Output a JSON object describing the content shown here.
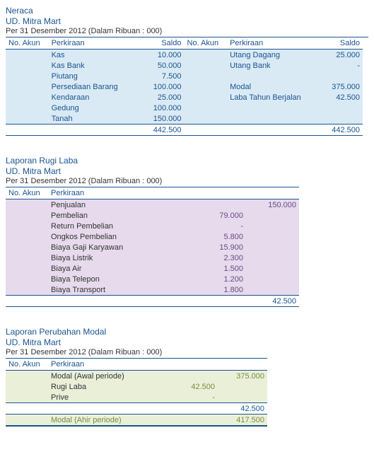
{
  "company": "UD. Mitra Mart",
  "period": "Per 31 Desember 2012 (Dalam Ribuan : 000)",
  "headers": {
    "no_akun": "No. Akun",
    "perkiraan": "Perkiraan",
    "saldo": "Saldo"
  },
  "neraca": {
    "title": "Neraca",
    "left": [
      {
        "name": "Kas",
        "saldo": "10.000"
      },
      {
        "name": "Kas Bank",
        "saldo": "50.000"
      },
      {
        "name": "Piutang",
        "saldo": "7.500"
      },
      {
        "name": "Persediaan Barang",
        "saldo": "100.000"
      },
      {
        "name": "Kendaraan",
        "saldo": "25.000"
      },
      {
        "name": "Gedung",
        "saldo": "100.000"
      },
      {
        "name": "Tanah",
        "saldo": "150.000"
      }
    ],
    "right": [
      {
        "name": "Utang Dagang",
        "saldo": "25.000"
      },
      {
        "name": "Utang Bank",
        "saldo": "-"
      },
      {
        "name": "",
        "saldo": ""
      },
      {
        "name": "Modal",
        "saldo": "375.000"
      },
      {
        "name": "Laba Tahun Berjalan",
        "saldo": "42.500"
      },
      {
        "name": "",
        "saldo": ""
      },
      {
        "name": "",
        "saldo": ""
      }
    ],
    "total_left": "442.500",
    "total_right": "442.500"
  },
  "rugi_laba": {
    "title": "Laporan Rugi Laba",
    "rows": [
      {
        "name": "Penjualan",
        "col1": "",
        "col2": "150.000"
      },
      {
        "name": "Pembelian",
        "col1": "79.000",
        "col2": ""
      },
      {
        "name": "Return Pembelian",
        "col1": "-",
        "col2": ""
      },
      {
        "name": "Ongkos Pembelian",
        "col1": "5.800",
        "col2": ""
      },
      {
        "name": "Biaya Gaji Karyawan",
        "col1": "15.900",
        "col2": ""
      },
      {
        "name": "Biaya Listrik",
        "col1": "2.300",
        "col2": ""
      },
      {
        "name": "Biaya Air",
        "col1": "1.500",
        "col2": ""
      },
      {
        "name": "Biaya Telepon",
        "col1": "1.200",
        "col2": ""
      },
      {
        "name": "Biaya Transport",
        "col1": "1.800",
        "col2": ""
      }
    ],
    "total": "42.500"
  },
  "perubahan_modal": {
    "title": "Laporan Perubahan Modal",
    "rows": [
      {
        "name": "Modal (Awal periode)",
        "col1": "",
        "col2": "375.000"
      },
      {
        "name": "Rugi Laba",
        "col1": "42.500",
        "col2": ""
      },
      {
        "name": "Prive",
        "col1": "-",
        "col2": ""
      }
    ],
    "subtotal": "42.500",
    "final_label": "Modal (Ahir periode)",
    "final": "417.500"
  }
}
